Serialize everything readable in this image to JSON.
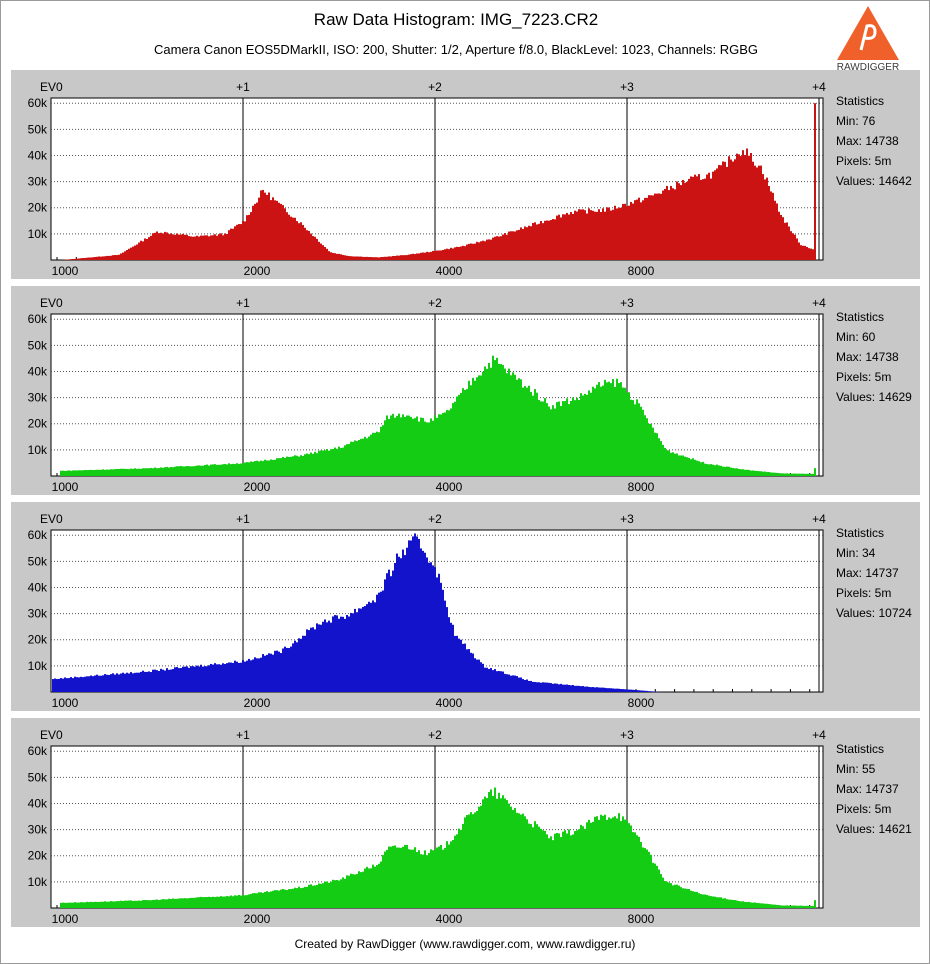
{
  "header": {
    "title": "Raw Data Histogram: IMG_7223.CR2",
    "subtitle": "Camera Canon EOS5DMarkII, ISO: 200, Shutter: 1/2, Aperture f/8.0, BlackLevel: 1023, Channels: RGBG",
    "logo_text": "RAWDIGGER"
  },
  "footer": {
    "credit": "Created by RawDigger (www.rawdigger.com, www.rawdigger.ru)"
  },
  "colors": {
    "red": "#cc1313",
    "green": "#13cc13",
    "blue": "#1313cc",
    "panel": "#c8c8c8",
    "plot": "#ffffff"
  },
  "chart_data": [
    {
      "type": "area",
      "channel": "R",
      "color": "#cc1313",
      "ev_labels": [
        "EV0",
        "+1",
        "+2",
        "+3",
        "+4"
      ],
      "x_labels": [
        "1000",
        "2000",
        "4000",
        "8000"
      ],
      "y_ticks": [
        "10k",
        "20k",
        "30k",
        "40k",
        "50k",
        "60k"
      ],
      "ylim": [
        0,
        62000
      ],
      "x_scale": "log2 (EV)",
      "x": [
        0.05,
        0.35,
        0.55,
        0.75,
        0.9,
        1.0,
        1.1,
        1.3,
        1.45,
        1.55,
        1.7,
        1.85,
        2.0,
        2.15,
        2.3,
        2.5,
        2.7,
        2.9,
        3.1,
        3.3,
        3.45,
        3.6,
        3.7,
        3.8,
        3.9,
        3.97
      ],
      "values": [
        0,
        2000,
        11000,
        9000,
        10000,
        15000,
        27000,
        14000,
        3000,
        1500,
        1000,
        2000,
        3500,
        5500,
        8500,
        13500,
        18500,
        19500,
        24000,
        30500,
        33500,
        43000,
        35000,
        17000,
        6000,
        4000
      ],
      "spike_at_end": 60000,
      "stats": {
        "heading": "Statistics",
        "min": "Min: 76",
        "max": "Max: 14738",
        "pixels": "Pixels: 5m",
        "values": "Values: 14642"
      }
    },
    {
      "type": "area",
      "channel": "G",
      "color": "#13cc13",
      "ev_labels": [
        "EV0",
        "+1",
        "+2",
        "+3",
        "+4"
      ],
      "x_labels": [
        "1000",
        "2000",
        "4000",
        "8000"
      ],
      "y_ticks": [
        "10k",
        "20k",
        "30k",
        "40k",
        "50k",
        "60k"
      ],
      "ylim": [
        0,
        62000
      ],
      "x_scale": "log2 (EV)",
      "x": [
        0.05,
        0.5,
        1.0,
        1.3,
        1.5,
        1.7,
        1.75,
        1.85,
        1.95,
        2.05,
        2.2,
        2.3,
        2.45,
        2.6,
        2.75,
        2.85,
        2.95,
        3.05,
        3.2,
        3.4,
        3.6,
        3.8,
        3.97
      ],
      "values": [
        2000,
        3000,
        5000,
        8000,
        11000,
        17000,
        23000,
        24000,
        21000,
        24000,
        38000,
        45000,
        36000,
        27000,
        30500,
        35000,
        36500,
        28000,
        10000,
        5000,
        2500,
        1000,
        800
      ],
      "spike_at_end": 3000,
      "stats": {
        "heading": "Statistics",
        "min": "Min: 60",
        "max": "Max: 14738",
        "pixels": "Pixels: 5m",
        "values": "Values: 14629"
      }
    },
    {
      "type": "area",
      "channel": "B",
      "color": "#1313cc",
      "ev_labels": [
        "EV0",
        "+1",
        "+2",
        "+3",
        "+4"
      ],
      "x_labels": [
        "1000",
        "2000",
        "4000",
        "8000"
      ],
      "y_ticks": [
        "10k",
        "20k",
        "30k",
        "40k",
        "50k",
        "60k"
      ],
      "ylim": [
        0,
        62000
      ],
      "x_scale": "log2 (EV)",
      "x": [
        0.0,
        0.5,
        1.0,
        1.2,
        1.4,
        1.55,
        1.7,
        1.8,
        1.9,
        2.0,
        2.1,
        2.25,
        2.5,
        2.8,
        3.0,
        3.1,
        3.17
      ],
      "values": [
        5000,
        8000,
        12000,
        16000,
        27000,
        30000,
        37000,
        52000,
        59000,
        48000,
        22000,
        10000,
        4000,
        2000,
        1000,
        400,
        0
      ],
      "spike_at_end": 0,
      "stats": {
        "heading": "Statistics",
        "min": "Min: 34",
        "max": "Max: 14737",
        "pixels": "Pixels: 5m",
        "values": "Values: 10724"
      }
    },
    {
      "type": "area",
      "channel": "G",
      "color": "#13cc13",
      "ev_labels": [
        "EV0",
        "+1",
        "+2",
        "+3",
        "+4"
      ],
      "x_labels": [
        "1000",
        "2000",
        "4000",
        "8000"
      ],
      "y_ticks": [
        "10k",
        "20k",
        "30k",
        "40k",
        "50k",
        "60k"
      ],
      "ylim": [
        0,
        62000
      ],
      "x_scale": "log2 (EV)",
      "x": [
        0.05,
        0.5,
        1.0,
        1.3,
        1.5,
        1.7,
        1.75,
        1.85,
        1.95,
        2.05,
        2.2,
        2.3,
        2.45,
        2.6,
        2.75,
        2.85,
        2.95,
        3.05,
        3.2,
        3.4,
        3.6,
        3.8,
        3.97
      ],
      "values": [
        2000,
        3000,
        5000,
        8000,
        11000,
        17000,
        23000,
        24000,
        21000,
        24000,
        38000,
        45000,
        36000,
        27000,
        30500,
        35000,
        36500,
        28000,
        10000,
        5000,
        2500,
        1000,
        800
      ],
      "spike_at_end": 3000,
      "stats": {
        "heading": "Statistics",
        "min": "Min: 55",
        "max": "Max: 14737",
        "pixels": "Pixels: 5m",
        "values": "Values: 14621"
      }
    }
  ]
}
